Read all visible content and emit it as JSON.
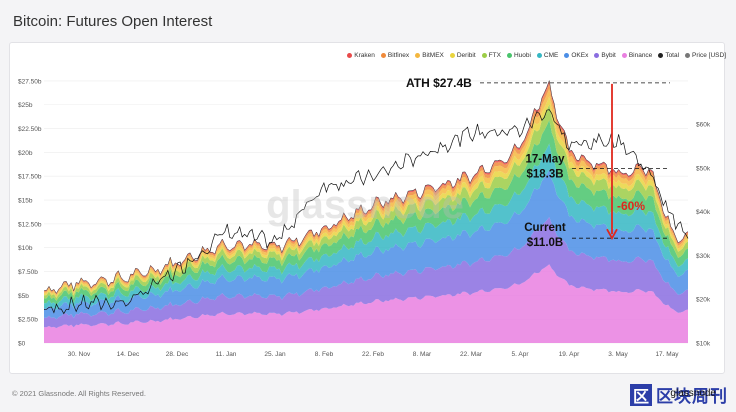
{
  "title": "Bitcoin: Futures Open Interest",
  "legend": [
    {
      "name": "Kraken",
      "color": "#e84a4a"
    },
    {
      "name": "Bitfinex",
      "color": "#f08a3a"
    },
    {
      "name": "BitMEX",
      "color": "#f4b73f"
    },
    {
      "name": "Deribit",
      "color": "#e9d43e"
    },
    {
      "name": "FTX",
      "color": "#9ccd47"
    },
    {
      "name": "Huobi",
      "color": "#49c46c"
    },
    {
      "name": "CME",
      "color": "#35b7c3"
    },
    {
      "name": "OKEx",
      "color": "#4b8ee6"
    },
    {
      "name": "Bybit",
      "color": "#8a6de0"
    },
    {
      "name": "Binance",
      "color": "#e97fe0"
    },
    {
      "name": "Total",
      "color": "#222222"
    },
    {
      "name": "Price [USD]",
      "color": "#777777"
    }
  ],
  "footer": "© 2021 Glassnode. All Rights Reserved.",
  "watermark": "glassnode",
  "brand": {
    "logo": "区",
    "text": "区块周刊",
    "small": "glassnode"
  },
  "chart_data": {
    "type": "area",
    "stacked": true,
    "x_ticks": [
      "30. Nov",
      "14. Dec",
      "28. Dec",
      "11. Jan",
      "25. Jan",
      "8. Feb",
      "22. Feb",
      "8. Mar",
      "22. Mar",
      "5. Apr",
      "19. Apr",
      "3. May",
      "17. May"
    ],
    "y_left": {
      "ticks": [
        "$0",
        "$2.50b",
        "$5b",
        "$7.50b",
        "$10b",
        "$12.50b",
        "$15b",
        "$17.50b",
        "$20b",
        "$22.50b",
        "$25b",
        "$27.50b"
      ],
      "range": [
        0,
        27.5
      ]
    },
    "y_right": {
      "ticks": [
        "$10k",
        "$20k",
        "$30k",
        "$40k",
        "$50k",
        "$60k"
      ],
      "range": [
        10000,
        70000
      ]
    },
    "series_order": [
      "Binance",
      "Bybit",
      "OKEx",
      "CME",
      "Huobi",
      "FTX",
      "Deribit",
      "BitMEX",
      "Bitfinex",
      "Kraken"
    ],
    "dates": [
      "2020-11-20",
      "2020-12-01",
      "2020-12-14",
      "2020-12-28",
      "2021-01-11",
      "2021-01-25",
      "2021-02-08",
      "2021-02-22",
      "2021-03-08",
      "2021-03-22",
      "2021-04-05",
      "2021-04-13",
      "2021-04-19",
      "2021-05-03",
      "2021-05-12",
      "2021-05-19",
      "2021-05-23"
    ],
    "total": [
      5.5,
      6.4,
      6.9,
      8.5,
      10.5,
      10.0,
      12.0,
      14.5,
      16.0,
      17.5,
      20.5,
      27.4,
      20.0,
      18.0,
      18.3,
      11.0,
      11.0
    ],
    "price": [
      17500,
      19000,
      19300,
      26500,
      35500,
      33000,
      46000,
      48000,
      53000,
      58000,
      58500,
      63500,
      55000,
      56500,
      49000,
      38000,
      34000
    ],
    "shares": {
      "Binance": 0.3,
      "Bybit": 0.18,
      "OKEx": 0.18,
      "CME": 0.1,
      "Huobi": 0.09,
      "FTX": 0.06,
      "Deribit": 0.03,
      "BitMEX": 0.03,
      "Bitfinex": 0.02,
      "Kraken": 0.01
    },
    "annotations": [
      {
        "label": "ATH $27.4B",
        "value": 27.4
      },
      {
        "label": "17-May $18.3B",
        "value": 18.3
      },
      {
        "label": "Current $11.0B",
        "value": 11.0
      },
      {
        "label": "-60%",
        "color": "#e0281e"
      }
    ]
  }
}
